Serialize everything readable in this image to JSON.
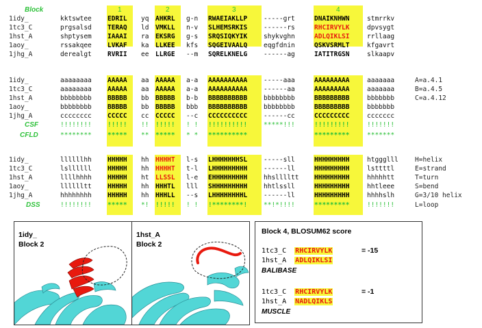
{
  "header": {
    "block_label": "Block",
    "block_numbers": [
      "1",
      "2",
      "3",
      "4"
    ]
  },
  "section1": {
    "rows": [
      {
        "label": "1idy_",
        "cells": [
          "kktswtee",
          "EDRIL",
          "yq",
          "AHKRL",
          "g-n",
          "RWAEIAKLLP",
          "-----grt",
          "DNAIKNHWN",
          "stmrrkv"
        ]
      },
      {
        "label": "1tc3_C",
        "cells": [
          "prgsalsd",
          "TERAQ",
          "ld",
          "VMKLL",
          "n-v",
          "SLHEMSRKIS",
          "------rs",
          "RHCIRVYLK",
          "dpvsygt"
        ]
      },
      {
        "label": "1hst_A",
        "cells": [
          "shptysem",
          "IAAAI",
          "ra",
          "EKSRG",
          "g-s",
          "SRQSIQKYIK",
          "shykvghn",
          "ADLQIKLSI",
          "rrllaag"
        ]
      },
      {
        "label": "1aoy_",
        "cells": [
          "rssakqee",
          "LVKAF",
          "ka",
          "LLKEE",
          "kfs",
          "SQGEIVAALQ",
          "eqgfdnin",
          "QSKVSRMLT",
          "kfgavrt"
        ]
      },
      {
        "label": "1jhg_A",
        "cells": [
          "derealgt",
          "RVRII",
          "ee",
          "LLRGE",
          "--m",
          "SQRELKNELG",
          "------ag",
          "IATITRGSN",
          "slkaapv"
        ]
      }
    ]
  },
  "section2": {
    "rows": [
      {
        "label": "1idy_",
        "cells": [
          "aaaaaaaa",
          "AAAAA",
          "aa",
          "AAAAA",
          "a-a",
          "AAAAAAAAAA",
          "-----aaa",
          "AAAAAAAAA",
          "aaaaaaa"
        ],
        "legend": "A=a.4.1"
      },
      {
        "label": "1tc3_C",
        "cells": [
          "aaaaaaaa",
          "AAAAA",
          "aa",
          "AAAAA",
          "a-a",
          "AAAAAAAAAA",
          "------aa",
          "AAAAAAAAA",
          "aaaaaaa"
        ],
        "legend": "B=a.4.5"
      },
      {
        "label": "1hst_A",
        "cells": [
          "bbbbbbbb",
          "BBBBB",
          "bb",
          "BBBBB",
          "b-b",
          "BBBBBBBBBB",
          "bbbbbbbb",
          "BBBBBBBBB",
          "bbbbbbb"
        ],
        "legend": "C=a.4.12"
      },
      {
        "label": "1aoy_",
        "cells": [
          "bbbbbbbb",
          "BBBBB",
          "bb",
          "BBBBB",
          "bbb",
          "BBBBBBBBBB",
          "bbbbbbbb",
          "BBBBBBBBB",
          "bbbbbbb"
        ],
        "legend": ""
      },
      {
        "label": "1jhg_A",
        "cells": [
          "cccccccc",
          "CCCCC",
          "cc",
          "CCCCC",
          "--c",
          "CCCCCCCCCC",
          "------cc",
          "CCCCCCCCC",
          "ccccccc"
        ],
        "legend": ""
      }
    ],
    "csf": {
      "label": "CSF",
      "cells": [
        "!!!!!!!!",
        "!!!!!",
        "!!",
        "!!!!!",
        "! !",
        "!!!!!!!!!!",
        "*****!!!",
        "!!!!!!!!!",
        "!!!!!!!"
      ]
    },
    "cfld": {
      "label": "CFLD",
      "cells": [
        "********",
        "*****",
        "**",
        "*****",
        "* *",
        "**********",
        "        ",
        "*********",
        "*******"
      ]
    }
  },
  "section3": {
    "rows": [
      {
        "label": "1idy_",
        "cells": [
          "llllllhh",
          "HHHHH",
          "hh",
          "HHHHT",
          "l-s",
          "LHHHHHHHSL",
          "-----sll",
          "HHHHHHHHH",
          "htggglll"
        ],
        "legend": "H=helix"
      },
      {
        "label": "1tc3_C",
        "cells": [
          "lsllllll",
          "HHHHH",
          "hh",
          "HHHHT",
          "t-l",
          "LHHHHHHHHH",
          "------ll",
          "HHHHHHHHH",
          "lsttttl"
        ],
        "legend": "E=strand"
      },
      {
        "label": "1hst_A",
        "cells": [
          "llllhhhh",
          "HHHHH",
          "ht",
          "LLSSL",
          "l-e",
          "EHHHHHHHHH",
          "hhslllltt",
          "HHHHHHHHH",
          "hhhhhtt"
        ],
        "legend": "T=turn"
      },
      {
        "label": "1aoy_",
        "cells": [
          "lllllltt",
          "HHHHH",
          "hh",
          "HHHTL",
          "lll",
          "SHHHHHHHHH",
          "hhtlssll",
          "HHHHHHHHH",
          "hhtleee"
        ],
        "legend": "S=bend"
      },
      {
        "label": "1jhg_A",
        "cells": [
          "hhhhhhhh",
          "HHHHH",
          "hh",
          "HHHLL",
          "--s",
          "LHHHHHHHHL",
          "------ll",
          "HHHHHHHHH",
          "hhhhslh"
        ],
        "legend": "G=3/10 helix"
      }
    ],
    "dss": {
      "label": "DSS",
      "cells": [
        "!!!!!!!!",
        "*****",
        "*!",
        "!!!!!",
        "! !",
        "!********!",
        "**!*!!!!",
        "*********",
        "!!!!!!!"
      ],
      "legend": "L=loop"
    }
  },
  "panels": {
    "left": {
      "title": "1idy_",
      "subtitle": "Block 2"
    },
    "right": {
      "title": "1hst_A",
      "subtitle": "Block 2"
    }
  },
  "score_box": {
    "title": "Block 4, BLOSUM62 score",
    "balibase": {
      "line1_label": "1tc3_C",
      "line1_seq": "RHCIRVYLK",
      "score": "= -15",
      "line2_label": "1hst_A",
      "line2_seq": "ADLQIKLSI",
      "method": "BALIBASE"
    },
    "muscle": {
      "line1_label": "1tc3_C",
      "line1_seq": "RHCIRVYLK",
      "score": "= -1",
      "line2_label": "1hst_A",
      "line2_seq": "NADLQIKLS",
      "method": "MUSCLE"
    }
  },
  "colors": {
    "highlight": "#f7f73a",
    "green": "#2ec13a",
    "red": "#e8190e",
    "cyan": "#52d6d6"
  }
}
